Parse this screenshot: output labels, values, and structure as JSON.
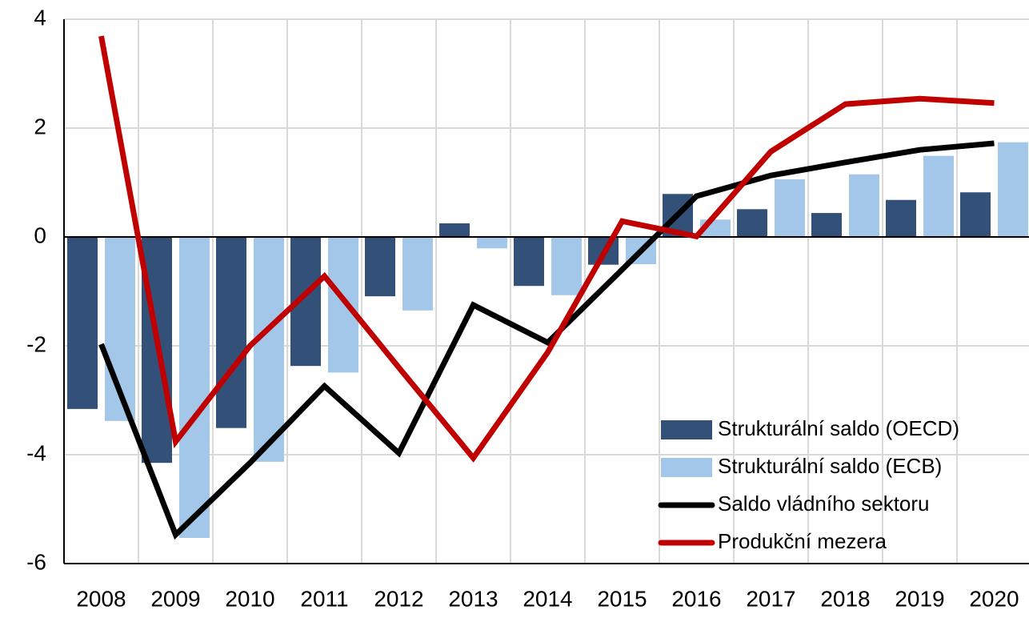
{
  "chart_data": {
    "type": "bar",
    "categories": [
      "2008",
      "2009",
      "2010",
      "2011",
      "2012",
      "2013",
      "2014",
      "2015",
      "2016",
      "2017",
      "2018",
      "2019",
      "2020"
    ],
    "series": [
      {
        "name": "Strukturální saldo (OECD)",
        "type": "bar",
        "color": "#335078",
        "values": [
          -3.16,
          -4.15,
          -3.51,
          -2.37,
          -1.09,
          0.25,
          -0.9,
          -0.51,
          0.79,
          0.51,
          0.44,
          0.68,
          0.82
        ]
      },
      {
        "name": "Strukturální saldo (ECB)",
        "type": "bar",
        "color": "#a3c7e9",
        "values": [
          -3.38,
          -5.53,
          -4.13,
          -2.49,
          -1.35,
          -0.21,
          -1.07,
          -0.5,
          0.32,
          1.06,
          1.15,
          1.49,
          1.74
        ]
      },
      {
        "name": "Saldo vládního sektoru",
        "type": "line",
        "color": "#000000",
        "values": [
          -1.97,
          -5.47,
          -4.15,
          -2.74,
          -3.97,
          -1.25,
          -1.94,
          -0.6,
          0.75,
          1.13,
          1.37,
          1.6,
          1.72
        ]
      },
      {
        "name": "Produkční mezera",
        "type": "line",
        "color": "#c00000",
        "values": [
          3.69,
          -3.76,
          -2.0,
          -0.72,
          -2.4,
          -4.06,
          -2.12,
          0.29,
          0.01,
          1.57,
          2.44,
          2.54,
          2.46
        ]
      }
    ],
    "ylim": [
      -6,
      4
    ],
    "yticks": [
      -6,
      -4,
      -2,
      0,
      2,
      4
    ],
    "grid": true,
    "legend": "lower right"
  }
}
